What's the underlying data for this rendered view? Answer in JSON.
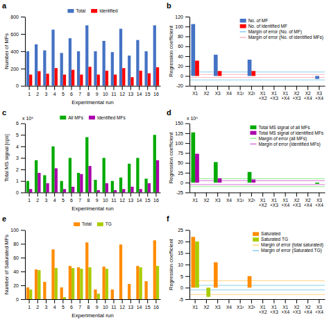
{
  "chart_data": [
    {
      "type": "bar",
      "title": "a",
      "xlabel": "Experimental run",
      "ylabel": "Number of MFs",
      "categories": [
        "1",
        "2",
        "3",
        "4",
        "5",
        "6",
        "7",
        "8",
        "9",
        "10",
        "11",
        "12",
        "13",
        "14",
        "15",
        "16"
      ],
      "series": [
        {
          "name": "Total",
          "color": "#4472C4",
          "values": [
            400,
            480,
            410,
            650,
            380,
            550,
            400,
            700,
            400,
            520,
            390,
            660,
            350,
            530,
            400,
            700
          ]
        },
        {
          "name": "Identified",
          "color": "#FF0000",
          "values": [
            130,
            170,
            140,
            205,
            130,
            185,
            130,
            220,
            130,
            175,
            130,
            205,
            100,
            175,
            145,
            215
          ]
        }
      ],
      "ylim": [
        0,
        800
      ],
      "yticks": [
        0,
        200,
        400,
        600,
        800
      ],
      "legend": "upper center"
    },
    {
      "type": "bar",
      "title": "b",
      "ylabel": "Regression coefficient",
      "categories": [
        "X1",
        "X2",
        "X3",
        "X4",
        "X1²",
        "X2²",
        "X1+X2",
        "X1+X3",
        "X1+X4",
        "X2+X3",
        "X2+X4",
        "X3+X4"
      ],
      "series": [
        {
          "name": "No. of MF",
          "color": "#4472C4",
          "values": [
            105,
            0,
            43,
            0,
            0,
            33,
            0,
            0,
            0,
            0,
            0,
            -6
          ]
        },
        {
          "name": "No. of identified MF",
          "color": "#FF0000",
          "values": [
            31,
            0,
            10,
            0,
            0,
            10,
            0,
            0,
            0,
            0,
            0,
            0
          ]
        }
      ],
      "reference_lines": [
        {
          "name": "Margin of error (No. of MF)",
          "color": "#87CEEB",
          "values": [
            8,
            -8
          ]
        },
        {
          "name": "Margin of error (No. of identified MFs)",
          "color": "#FFB6C1",
          "values": [
            3,
            -3
          ]
        }
      ],
      "ylim": [
        -20,
        120
      ],
      "yticks": [
        -20,
        0,
        20,
        40,
        60,
        80,
        100,
        120
      ],
      "legend": "upper right"
    },
    {
      "type": "bar",
      "title": "c",
      "xlabel": "Experimental run",
      "ylabel": "Total MS signal [cps]",
      "annotation": "x 10⁶",
      "categories": [
        "1",
        "2",
        "3",
        "4",
        "5",
        "6",
        "7",
        "8",
        "9",
        "10",
        "11",
        "12",
        "13",
        "14",
        "15",
        "16"
      ],
      "series": [
        {
          "name": "All MFs",
          "color": "#00AA00",
          "values": [
            1.0,
            2.8,
            1.5,
            4.0,
            1.0,
            3.0,
            1.7,
            4.8,
            1.1,
            3.0,
            1.0,
            1.3,
            2.5,
            3.0,
            1.2,
            5.0
          ]
        },
        {
          "name": "Identified MFs",
          "color": "#AA00AA",
          "values": [
            0.3,
            1.7,
            0.8,
            2.1,
            0.3,
            0.5,
            1.6,
            2.3,
            0.2,
            0.8,
            0.2,
            0.3,
            0.5,
            0.3,
            0.8,
            2.8
          ]
        }
      ],
      "ylim": [
        0,
        6
      ],
      "yticks": [
        0,
        1,
        2,
        3,
        4,
        5,
        6
      ],
      "legend": "upper center"
    },
    {
      "type": "bar",
      "title": "d",
      "ylabel": "Regression coefficient",
      "annotation": "x 10⁶",
      "categories": [
        "X1",
        "X2",
        "X3",
        "X4",
        "X1²",
        "X2²",
        "X1+X2",
        "X1+X3",
        "X1+X4",
        "X2+X3",
        "X2+X4",
        "X3+X4"
      ],
      "series": [
        {
          "name": "Total MS signal of all MFs",
          "color": "#00AA00",
          "values": [
            127,
            0,
            52,
            0,
            0,
            27,
            0,
            0,
            0,
            0,
            0,
            -3
          ]
        },
        {
          "name": "Total MS signal of identified MFs",
          "color": "#AA00AA",
          "values": [
            73,
            0,
            11,
            0,
            0,
            8,
            0,
            0,
            0,
            0,
            0,
            0
          ]
        }
      ],
      "reference_lines": [
        {
          "name": "Margin of error (all MFs)",
          "color": "#90EE90",
          "values": [
            10,
            -10
          ]
        },
        {
          "name": "Margin of error (identified MFs)",
          "color": "#DA70D6",
          "values": [
            5,
            -5
          ]
        }
      ],
      "ylim": [
        -25,
        150
      ],
      "yticks": [
        -25,
        0,
        25,
        50,
        75,
        100,
        125,
        150
      ],
      "legend": "upper right"
    },
    {
      "type": "bar",
      "title": "e",
      "xlabel": "Experimental run",
      "ylabel": "Number of Saturated MFs",
      "categories": [
        "1",
        "2",
        "3",
        "4",
        "5",
        "6",
        "7",
        "8",
        "9",
        "10",
        "11",
        "12",
        "13",
        "14",
        "15",
        "16"
      ],
      "series": [
        {
          "name": "Total",
          "color": "#FF8C00",
          "values": [
            17,
            43,
            25,
            72,
            17,
            48,
            46,
            82,
            14,
            47,
            14,
            79,
            22,
            48,
            26,
            85
          ]
        },
        {
          "name": "TG",
          "color": "#AACC00",
          "values": [
            14,
            42,
            0,
            45,
            3,
            45,
            44,
            46,
            8,
            44,
            0,
            0,
            0,
            46,
            0,
            48
          ]
        }
      ],
      "ylim": [
        0,
        100
      ],
      "yticks": [
        0,
        20,
        40,
        60,
        80,
        100
      ],
      "legend": "upper center"
    },
    {
      "type": "bar",
      "title": "f",
      "ylabel": "Regression coefficient",
      "categories": [
        "X1",
        "X2",
        "X3",
        "X4",
        "X1²",
        "X2²",
        "X1+X2",
        "X1+X3",
        "X1+X4",
        "X2+X3",
        "X2+X4",
        "X3+X4"
      ],
      "series": [
        {
          "name": "Saturated",
          "color": "#FF8C00",
          "values": [
            22,
            0,
            11,
            0,
            0,
            5,
            0,
            0,
            0,
            0,
            0,
            0
          ]
        },
        {
          "name": "Saturated TG",
          "color": "#AACC00",
          "values": [
            20,
            -4,
            0,
            0,
            0,
            0,
            0,
            0,
            0,
            0,
            0,
            0
          ]
        }
      ],
      "reference_lines": [
        {
          "name": "Margin of error (total saturated)",
          "color": "#FFD580",
          "values": [
            3,
            -3
          ]
        },
        {
          "name": "Margin of error (Saturated TG)",
          "color": "#87CEEB",
          "values": [
            1,
            -1
          ]
        }
      ],
      "ylim": [
        -5,
        25
      ],
      "yticks": [
        -5,
        0,
        5,
        10,
        15,
        20,
        25
      ],
      "legend": "upper right"
    }
  ]
}
